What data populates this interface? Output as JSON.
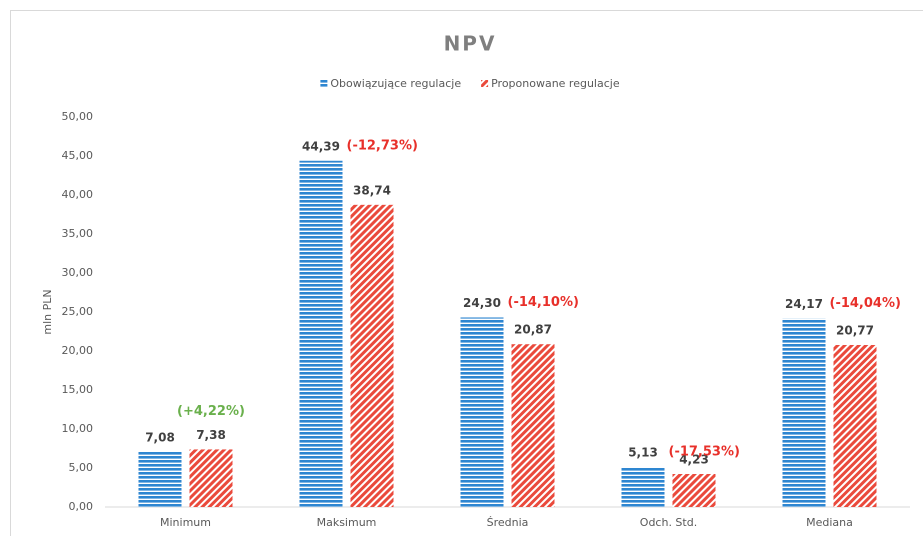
{
  "chart_data": {
    "type": "bar",
    "title": "NPV",
    "y_label": "mln PLN",
    "categories": [
      "Minimum",
      "Maksimum",
      "Średnia",
      "Odch. Std.",
      "Mediana"
    ],
    "series": [
      {
        "name": "Obowiązujące regulacje",
        "color": "#2e86d1",
        "pattern": "horizontal",
        "values": [
          7.08,
          44.39,
          24.3,
          5.13,
          24.17
        ],
        "value_labels": [
          "7,08",
          "44,39",
          "24,30",
          "5,13",
          "24,17"
        ]
      },
      {
        "name": "Proponowane regulacje",
        "color": "#ea4a3c",
        "pattern": "diagonal",
        "values": [
          7.38,
          38.74,
          20.87,
          4.23,
          20.77
        ],
        "value_labels": [
          "7,38",
          "38,74",
          "20,87",
          "4,23",
          "20,77"
        ]
      }
    ],
    "annotations": [
      {
        "text": "(+4,22%)",
        "color": "#6ab04c"
      },
      {
        "text": "(-12,73%)",
        "color": "#e8302a"
      },
      {
        "text": "(-14,10%)",
        "color": "#e8302a"
      },
      {
        "text": "(-17,53%)",
        "color": "#e8302a"
      },
      {
        "text": "(-14,04%)",
        "color": "#e8302a"
      }
    ],
    "ylim": [
      0,
      50
    ],
    "yticks": [
      {
        "value": 0,
        "label": "0,00"
      },
      {
        "value": 5,
        "label": "5,00"
      },
      {
        "value": 10,
        "label": "10,00"
      },
      {
        "value": 15,
        "label": "15,00"
      },
      {
        "value": 20,
        "label": "20,00"
      },
      {
        "value": 25,
        "label": "25,00"
      },
      {
        "value": 30,
        "label": "30,00"
      },
      {
        "value": 35,
        "label": "35,00"
      },
      {
        "value": 40,
        "label": "40,00"
      },
      {
        "value": 45,
        "label": "45,00"
      },
      {
        "value": 50,
        "label": "50,00"
      }
    ],
    "grid": false
  }
}
